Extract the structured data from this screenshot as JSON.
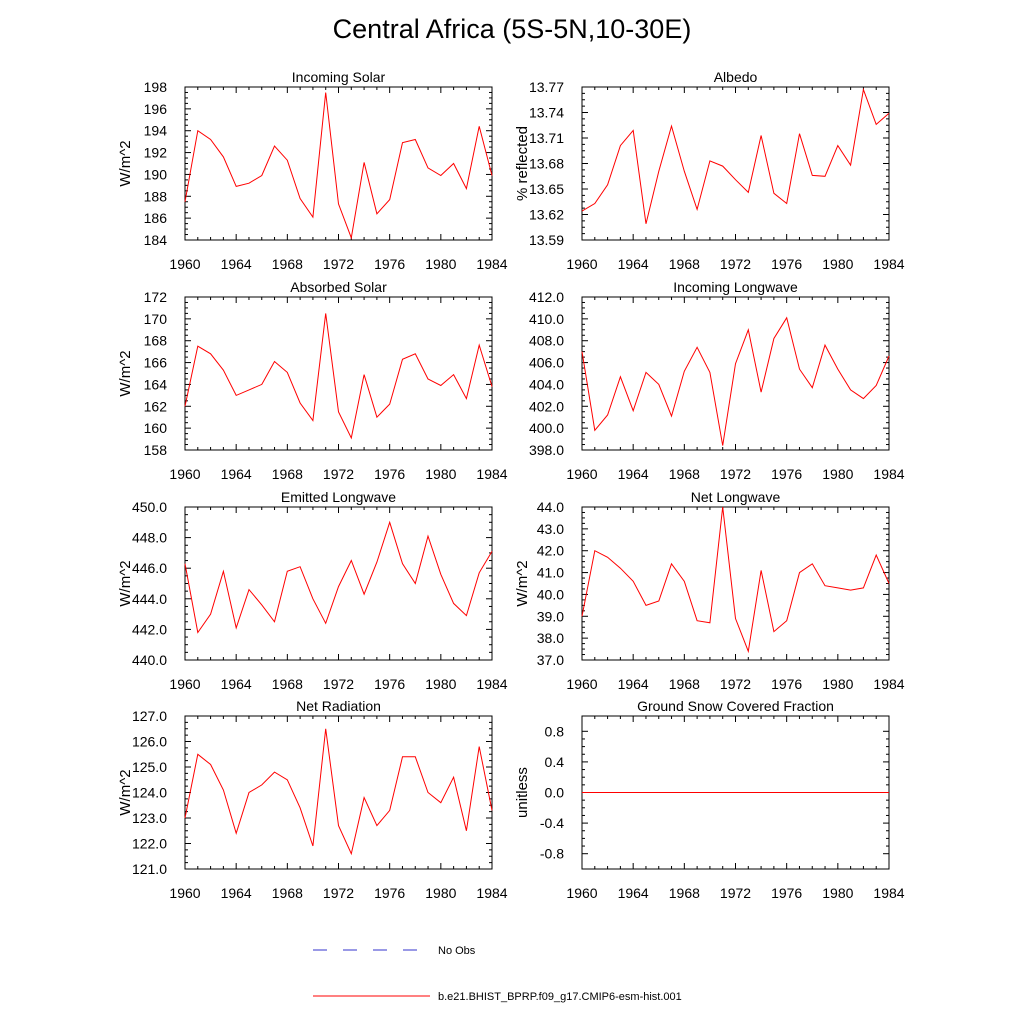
{
  "title": "Central Africa (5S-5N,10-30E)",
  "colors": {
    "model_line": "#ff0000",
    "obs_line": "#3333cc",
    "axis": "#000000"
  },
  "legend": [
    {
      "label": "No Obs",
      "style": "dashed",
      "color": "#3333cc"
    },
    {
      "label": "b.e21.BHIST_BPRP.f09_g17.CMIP6-esm-hist.001",
      "style": "solid",
      "color": "#ff0000"
    }
  ],
  "chart_data": [
    {
      "type": "line",
      "title": "Incoming Solar",
      "ylabel": "W/m^2",
      "xlim": [
        1960,
        1984
      ],
      "ylim": [
        184,
        198
      ],
      "xticks": [
        "1960",
        "1964",
        "1968",
        "1972",
        "1976",
        "1980",
        "1984"
      ],
      "yticks": [
        "184",
        "186",
        "188",
        "190",
        "192",
        "194",
        "196",
        "198"
      ],
      "x": [
        1960,
        1961,
        1962,
        1963,
        1964,
        1965,
        1966,
        1967,
        1968,
        1969,
        1970,
        1971,
        1972,
        1973,
        1974,
        1975,
        1976,
        1977,
        1978,
        1979,
        1980,
        1981,
        1982,
        1983,
        1984
      ],
      "series": [
        {
          "values": [
            187.5,
            194.0,
            193.2,
            191.6,
            188.9,
            189.2,
            189.9,
            192.6,
            191.3,
            187.8,
            186.1,
            197.5,
            187.3,
            184.2,
            191.1,
            186.4,
            187.7,
            192.9,
            193.2,
            190.6,
            189.9,
            191.0,
            188.7,
            194.4,
            189.9
          ]
        }
      ]
    },
    {
      "type": "line",
      "title": "Albedo",
      "ylabel": "% reflected",
      "xlim": [
        1960,
        1984
      ],
      "ylim": [
        13.59,
        13.77
      ],
      "xticks": [
        "1960",
        "1964",
        "1968",
        "1972",
        "1976",
        "1980",
        "1984"
      ],
      "yticks": [
        "13.59",
        "13.62",
        "13.65",
        "13.68",
        "13.71",
        "13.74",
        "13.77"
      ],
      "x": [
        1960,
        1961,
        1962,
        1963,
        1964,
        1965,
        1966,
        1967,
        1968,
        1969,
        1970,
        1971,
        1972,
        1973,
        1974,
        1975,
        1976,
        1977,
        1978,
        1979,
        1980,
        1981,
        1982,
        1983,
        1984
      ],
      "series": [
        {
          "values": [
            13.624,
            13.633,
            13.655,
            13.701,
            13.719,
            13.609,
            13.671,
            13.724,
            13.671,
            13.626,
            13.683,
            13.677,
            13.661,
            13.646,
            13.713,
            13.645,
            13.633,
            13.715,
            13.666,
            13.665,
            13.701,
            13.678,
            13.767,
            13.726,
            13.739
          ]
        }
      ]
    },
    {
      "type": "line",
      "title": "Absorbed Solar",
      "ylabel": "W/m^2",
      "xlim": [
        1960,
        1984
      ],
      "ylim": [
        158,
        172
      ],
      "xticks": [
        "1960",
        "1964",
        "1968",
        "1972",
        "1976",
        "1980",
        "1984"
      ],
      "yticks": [
        "158",
        "160",
        "162",
        "164",
        "166",
        "168",
        "170",
        "172"
      ],
      "x": [
        1960,
        1961,
        1962,
        1963,
        1964,
        1965,
        1966,
        1967,
        1968,
        1969,
        1970,
        1971,
        1972,
        1973,
        1974,
        1975,
        1976,
        1977,
        1978,
        1979,
        1980,
        1981,
        1982,
        1983,
        1984
      ],
      "series": [
        {
          "values": [
            162.0,
            167.5,
            166.8,
            165.3,
            163.0,
            163.5,
            164.0,
            166.1,
            165.1,
            162.3,
            160.7,
            170.5,
            161.5,
            159.1,
            164.9,
            161.0,
            162.2,
            166.3,
            166.8,
            164.5,
            163.9,
            164.9,
            162.7,
            167.6,
            163.8
          ]
        }
      ]
    },
    {
      "type": "line",
      "title": "Incoming Longwave",
      "ylabel": "",
      "xlim": [
        1960,
        1984
      ],
      "ylim": [
        398,
        412
      ],
      "xticks": [
        "1960",
        "1964",
        "1968",
        "1972",
        "1976",
        "1980",
        "1984"
      ],
      "yticks": [
        "398.0",
        "400.0",
        "402.0",
        "404.0",
        "406.0",
        "408.0",
        "410.0",
        "412.0"
      ],
      "x": [
        1960,
        1961,
        1962,
        1963,
        1964,
        1965,
        1966,
        1967,
        1968,
        1969,
        1970,
        1971,
        1972,
        1973,
        1974,
        1975,
        1976,
        1977,
        1978,
        1979,
        1980,
        1981,
        1982,
        1983,
        1984
      ],
      "series": [
        {
          "values": [
            407.0,
            399.8,
            401.2,
            404.7,
            401.6,
            405.1,
            404.0,
            401.1,
            405.2,
            407.4,
            405.1,
            398.4,
            405.9,
            409.0,
            403.3,
            408.2,
            410.1,
            405.4,
            403.7,
            407.6,
            405.4,
            403.5,
            402.7,
            403.9,
            406.6
          ]
        }
      ]
    },
    {
      "type": "line",
      "title": "Emitted Longwave",
      "ylabel": "W/m^2",
      "xlim": [
        1960,
        1984
      ],
      "ylim": [
        440,
        450
      ],
      "xticks": [
        "1960",
        "1964",
        "1968",
        "1972",
        "1976",
        "1980",
        "1984"
      ],
      "yticks": [
        "440.0",
        "442.0",
        "444.0",
        "446.0",
        "448.0",
        "450.0"
      ],
      "x": [
        1960,
        1961,
        1962,
        1963,
        1964,
        1965,
        1966,
        1967,
        1968,
        1969,
        1970,
        1971,
        1972,
        1973,
        1974,
        1975,
        1976,
        1977,
        1978,
        1979,
        1980,
        1981,
        1982,
        1983,
        1984
      ],
      "series": [
        {
          "values": [
            446.3,
            441.8,
            443.0,
            445.8,
            442.1,
            444.6,
            443.6,
            442.5,
            445.8,
            446.1,
            444.0,
            442.4,
            444.8,
            446.5,
            444.3,
            446.4,
            449.0,
            446.3,
            445.0,
            448.1,
            445.6,
            443.7,
            442.9,
            445.7,
            447.1
          ]
        }
      ]
    },
    {
      "type": "line",
      "title": "Net Longwave",
      "ylabel": "W/m^2",
      "xlim": [
        1960,
        1984
      ],
      "ylim": [
        37,
        44
      ],
      "xticks": [
        "1960",
        "1964",
        "1968",
        "1972",
        "1976",
        "1980",
        "1984"
      ],
      "yticks": [
        "37.0",
        "38.0",
        "39.0",
        "40.0",
        "41.0",
        "42.0",
        "43.0",
        "44.0"
      ],
      "x": [
        1960,
        1961,
        1962,
        1963,
        1964,
        1965,
        1966,
        1967,
        1968,
        1969,
        1970,
        1971,
        1972,
        1973,
        1974,
        1975,
        1976,
        1977,
        1978,
        1979,
        1980,
        1981,
        1982,
        1983,
        1984
      ],
      "series": [
        {
          "values": [
            39.0,
            42.0,
            41.7,
            41.2,
            40.6,
            39.5,
            39.7,
            41.4,
            40.6,
            38.8,
            38.7,
            44.0,
            38.9,
            37.4,
            41.1,
            38.3,
            38.8,
            41.0,
            41.4,
            40.4,
            40.3,
            40.2,
            40.3,
            41.8,
            40.5
          ]
        }
      ]
    },
    {
      "type": "line",
      "title": "Net Radiation",
      "ylabel": "W/m^2",
      "xlim": [
        1960,
        1984
      ],
      "ylim": [
        121,
        127
      ],
      "xticks": [
        "1960",
        "1964",
        "1968",
        "1972",
        "1976",
        "1980",
        "1984"
      ],
      "yticks": [
        "121.0",
        "122.0",
        "123.0",
        "124.0",
        "125.0",
        "126.0",
        "127.0"
      ],
      "x": [
        1960,
        1961,
        1962,
        1963,
        1964,
        1965,
        1966,
        1967,
        1968,
        1969,
        1970,
        1971,
        1972,
        1973,
        1974,
        1975,
        1976,
        1977,
        1978,
        1979,
        1980,
        1981,
        1982,
        1983,
        1984
      ],
      "series": [
        {
          "values": [
            123.0,
            125.5,
            125.1,
            124.1,
            122.4,
            124.0,
            124.3,
            124.8,
            124.5,
            123.4,
            121.9,
            126.5,
            122.7,
            121.6,
            123.8,
            122.7,
            123.3,
            125.4,
            125.4,
            124.0,
            123.6,
            124.6,
            122.5,
            125.8,
            123.3
          ]
        }
      ]
    },
    {
      "type": "line",
      "title": "Ground Snow Covered Fraction",
      "ylabel": "unitless",
      "xlim": [
        1960,
        1984
      ],
      "ylim": [
        -1.0,
        1.0
      ],
      "xticks": [
        "1960",
        "1964",
        "1968",
        "1972",
        "1976",
        "1980",
        "1984"
      ],
      "yticks": [
        "-0.8",
        "-0.4",
        "0.0",
        "0.4",
        "0.8"
      ],
      "ytick_values": [
        -0.8,
        -0.4,
        0.0,
        0.4,
        0.8
      ],
      "x": [
        1960,
        1984
      ],
      "series": [
        {
          "values": [
            0.0,
            0.0
          ]
        }
      ]
    }
  ]
}
